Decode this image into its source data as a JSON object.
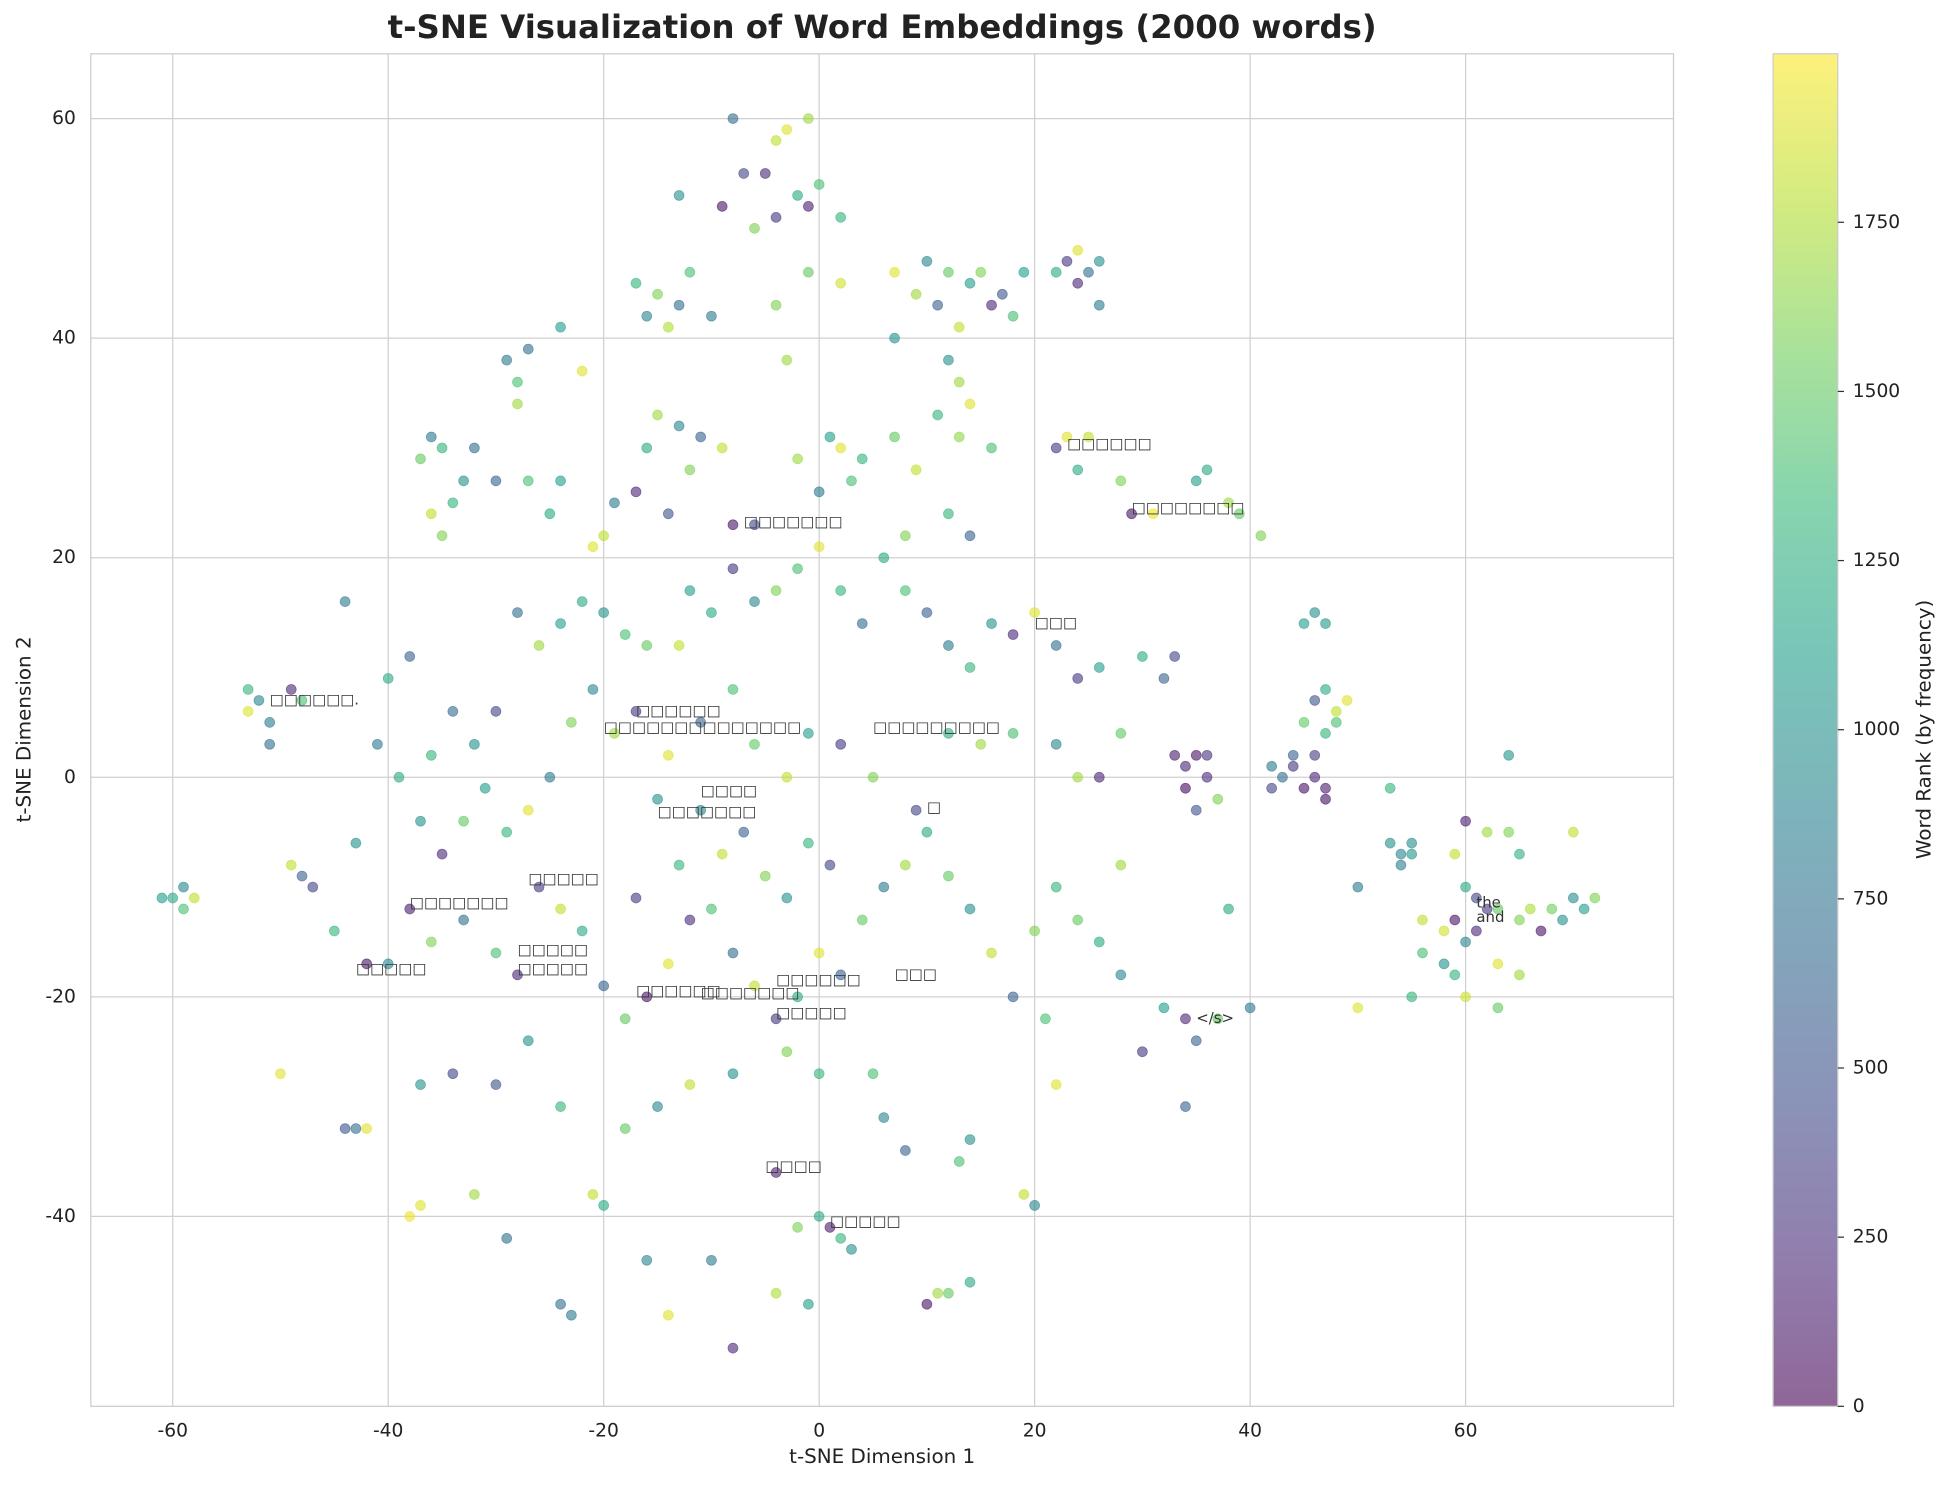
{
  "chart_data": {
    "type": "scatter",
    "title": "t-SNE Visualization of Word Embeddings (2000 words)",
    "x_label": "t-SNE Dimension 1",
    "y_label": "t-SNE Dimension 2",
    "colorbar_label": "Word Rank (by frequency)",
    "colormap": "viridis",
    "alpha": 0.6,
    "grid": true,
    "xlim": [
      -67.6,
      79.3
    ],
    "ylim": [
      -57.3,
      65.9
    ],
    "xticks": [
      -60,
      -40,
      -20,
      0,
      20,
      40,
      60
    ],
    "yticks": [
      -40,
      -20,
      0,
      20,
      40,
      60
    ],
    "clim": [
      0,
      1999
    ],
    "cticks": [
      0,
      250,
      500,
      750,
      1000,
      1250,
      1500,
      1750
    ],
    "x": [
      -8,
      -3,
      -4,
      -7,
      -5,
      -2,
      -1,
      0,
      -9,
      -6,
      -13,
      -4,
      2,
      -1,
      7,
      10,
      12,
      14,
      9,
      11,
      16,
      18,
      13,
      7,
      19,
      15,
      17,
      23,
      24,
      25,
      26,
      24,
      26,
      22,
      -17,
      -15,
      -13,
      -16,
      -12,
      -14,
      -10,
      -4,
      -3,
      -1,
      2,
      -29,
      -27,
      -24,
      -28,
      -22,
      -28,
      -36,
      -35,
      -37,
      -32,
      -33,
      -30,
      -34,
      -27,
      -24,
      -36,
      -35,
      -25,
      -15,
      -13,
      -16,
      -11,
      -9,
      -12,
      -17,
      -19,
      -14,
      -20,
      -21,
      -8,
      -6,
      2,
      1,
      4,
      -2,
      3,
      0,
      7,
      9,
      8,
      12,
      13,
      11,
      14,
      16,
      13,
      12,
      14,
      23,
      25,
      22,
      24,
      28,
      29,
      31,
      35,
      36,
      38,
      39,
      41,
      33,
      34,
      35,
      36,
      36,
      34,
      37,
      35,
      42,
      43,
      44,
      45,
      46,
      47,
      47,
      46,
      44,
      42,
      46,
      45,
      47,
      46,
      48,
      48,
      47,
      45,
      49,
      47,
      53,
      54,
      55,
      54,
      53,
      55,
      60,
      62,
      64,
      59,
      60,
      61,
      62,
      59,
      61,
      58,
      60,
      63,
      65,
      66,
      68,
      69,
      70,
      71,
      72,
      58,
      59,
      63,
      65,
      63,
      56,
      55,
      56,
      64,
      65,
      70,
      67,
      60,
      50,
      50,
      -60,
      -59,
      -58,
      -59,
      -61,
      -53,
      -52,
      -51,
      -51,
      -53,
      -49,
      -48,
      -50,
      -49,
      -48,
      -47,
      -8,
      -14,
      -23,
      -24,
      11,
      12,
      14,
      10,
      -4,
      -1,
      2,
      3,
      1,
      -2,
      0,
      -10,
      -16,
      -4,
      -21,
      -20,
      -37,
      -38,
      -42,
      -44,
      -43,
      19,
      20,
      14,
      13,
      8,
      6,
      -44,
      -40,
      -38,
      -36,
      -34,
      -32,
      -30,
      -28,
      -26,
      -24,
      -22,
      -20,
      -18,
      -16,
      -13,
      -12,
      -10,
      -8,
      -6,
      -4,
      -2,
      0,
      2,
      4,
      6,
      8,
      10,
      12,
      14,
      16,
      18,
      20,
      22,
      24,
      26,
      28,
      30,
      32,
      33,
      22,
      24,
      26,
      18,
      15,
      12,
      9,
      5,
      2,
      -1,
      -3,
      -6,
      -8,
      -11,
      -14,
      -17,
      -19,
      -21,
      -23,
      -25,
      -27,
      -29,
      -31,
      -33,
      -35,
      -37,
      -39,
      -41,
      -43,
      -45,
      -42,
      -40,
      -38,
      -36,
      -33,
      -30,
      -28,
      -26,
      -24,
      -22,
      -20,
      -18,
      -16,
      -14,
      -12,
      -10,
      -8,
      -6,
      -4,
      -2,
      0,
      2,
      4,
      6,
      8,
      10,
      12,
      14,
      16,
      18,
      20,
      22,
      24,
      26,
      28,
      30,
      32,
      34,
      35,
      37,
      38,
      40,
      34,
      28,
      21,
      22,
      -15,
      -12,
      -18,
      -24,
      -27,
      -30,
      -34,
      -37,
      -32,
      -29,
      -8,
      -3,
      0,
      5,
      -17,
      -15,
      -13,
      -11,
      -9,
      -7,
      -5,
      -3,
      -1,
      1
    ],
    "y": [
      60,
      59,
      58,
      55,
      55,
      53,
      52,
      54,
      52,
      50,
      53,
      51,
      51,
      60,
      46,
      47,
      46,
      45,
      44,
      43,
      43,
      42,
      41,
      40,
      46,
      46,
      44,
      47,
      48,
      46,
      47,
      45,
      43,
      46,
      45,
      44,
      43,
      42,
      46,
      41,
      42,
      43,
      38,
      46,
      45,
      38,
      39,
      41,
      36,
      37,
      34,
      31,
      30,
      29,
      30,
      27,
      27,
      25,
      27,
      27,
      24,
      22,
      24,
      33,
      32,
      30,
      31,
      30,
      28,
      26,
      25,
      24,
      22,
      21,
      23,
      23,
      30,
      31,
      29,
      29,
      27,
      26,
      31,
      28,
      22,
      38,
      36,
      33,
      34,
      30,
      31,
      24,
      22,
      31,
      31,
      30,
      28,
      27,
      24,
      24,
      27,
      28,
      25,
      24,
      22,
      2,
      1,
      2,
      0,
      2,
      -1,
      -2,
      -3,
      1,
      0,
      1,
      -1,
      0,
      -1,
      -2,
      2,
      2,
      -1,
      15,
      14,
      8,
      7,
      6,
      5,
      4,
      5,
      7,
      14,
      -6,
      -7,
      -6,
      -8,
      -1,
      -7,
      -4,
      -5,
      -5,
      -7,
      -10,
      -11,
      -12,
      -13,
      -14,
      -14,
      -15,
      -12,
      -13,
      -12,
      -12,
      -13,
      -11,
      -12,
      -11,
      -17,
      -18,
      -17,
      -18,
      -21,
      -16,
      -20,
      -13,
      2,
      -7,
      -5,
      -14,
      -20,
      -21,
      -10,
      -11,
      -10,
      -11,
      -12,
      -11,
      8,
      7,
      3,
      5,
      6,
      8,
      7,
      -27,
      -8,
      -9,
      -10,
      -52,
      -49,
      -49,
      -48,
      -47,
      -47,
      -46,
      -48,
      -47,
      -48,
      -42,
      -43,
      -41,
      -41,
      -40,
      -44,
      -44,
      -36,
      -38,
      -39,
      -39,
      -40,
      -32,
      -32,
      -32,
      -38,
      -39,
      -33,
      -35,
      -34,
      -31,
      16,
      9,
      11,
      2,
      6,
      3,
      6,
      15,
      12,
      14,
      16,
      15,
      13,
      12,
      12,
      17,
      15,
      19,
      16,
      17,
      19,
      21,
      17,
      14,
      20,
      17,
      15,
      12,
      10,
      14,
      13,
      15,
      12,
      9,
      10,
      4,
      11,
      9,
      11,
      3,
      0,
      0,
      4,
      3,
      4,
      -3,
      0,
      3,
      4,
      0,
      3,
      8,
      5,
      2,
      6,
      4,
      8,
      5,
      0,
      -3,
      -5,
      -1,
      -4,
      -7,
      -4,
      0,
      3,
      -6,
      -14,
      -17,
      -17,
      -12,
      -15,
      -13,
      -16,
      -18,
      -10,
      -12,
      -14,
      -19,
      -22,
      -20,
      -17,
      -13,
      -12,
      -16,
      -19,
      -22,
      -20,
      -16,
      -18,
      -13,
      -10,
      -8,
      -5,
      -9,
      -12,
      -16,
      -20,
      -14,
      -10,
      -13,
      -15,
      -18,
      -25,
      -21,
      -22,
      -24,
      -22,
      -12,
      -21,
      -30,
      -8,
      -22,
      -28,
      -30,
      -28,
      -32,
      -30,
      -24,
      -28,
      -27,
      -28,
      -38,
      -42,
      -27,
      -25,
      -27,
      -27,
      -11,
      -2,
      -8,
      -3,
      -7,
      -5,
      -9,
      -11,
      -6,
      -8
    ],
    "ranks": [
      700,
      1900,
      1800,
      400,
      200,
      1200,
      150,
      1400,
      100,
      1600,
      1000,
      300,
      1300,
      1700,
      1900,
      900,
      1500,
      1100,
      1700,
      600,
      200,
      1400,
      1800,
      1000,
      1100,
      1600,
      500,
      300,
      1900,
      700,
      1000,
      200,
      800,
      1200,
      1300,
      1600,
      700,
      900,
      1400,
      1750,
      800,
      1600,
      1700,
      1500,
      1850,
      800,
      700,
      1100,
      1400,
      1900,
      1700,
      800,
      1300,
      1500,
      700,
      1000,
      600,
      1300,
      1400,
      1100,
      1800,
      1600,
      1200,
      1700,
      900,
      1200,
      600,
      1800,
      1600,
      200,
      800,
      500,
      1800,
      1900,
      100,
      400,
      1900,
      1100,
      1300,
      1700,
      1400,
      800,
      1500,
      1800,
      1600,
      1000,
      1700,
      1300,
      1900,
      1400,
      1650,
      1300,
      600,
      1900,
      1800,
      300,
      1200,
      1600,
      100,
      1950,
      1100,
      1200,
      1700,
      1500,
      1600,
      150,
      200,
      100,
      250,
      300,
      50,
      1600,
      500,
      800,
      700,
      300,
      100,
      200,
      150,
      80,
      350,
      600,
      400,
      1000,
      1100,
      1200,
      500,
      1800,
      1400,
      1300,
      1500,
      1900,
      1050,
      1000,
      900,
      950,
      850,
      1300,
      1050,
      150,
      1700,
      1600,
      1800,
      1200,
      400,
      300,
      100,
      200,
      1850,
      900,
      1500,
      1600,
      1750,
      1550,
      1000,
      950,
      1100,
      1600,
      1000,
      1300,
      1900,
      1700,
      1500,
      1400,
      1300,
      1800,
      1050,
      1250,
      1800,
      100,
      1850,
      1900,
      800,
      1200,
      900,
      1800,
      1400,
      1100,
      1300,
      900,
      700,
      800,
      1900,
      200,
      1400,
      1900,
      1800,
      600,
      400,
      200,
      1900,
      800,
      700,
      1700,
      1500,
      1200,
      100,
      1750,
      1100,
      1300,
      1000,
      150,
      1600,
      1200,
      800,
      900,
      150,
      1800,
      1200,
      1900,
      1950,
      1900,
      500,
      700,
      1800,
      900,
      1000,
      1400,
      600,
      900,
      800,
      1200,
      600,
      1300,
      700,
      1000,
      400,
      700,
      1700,
      1100,
      1200,
      1000,
      1400,
      1500,
      1800,
      1100,
      1200,
      300,
      900,
      1600,
      1400,
      1900,
      1300,
      700,
      1200,
      1400,
      600,
      800,
      1300,
      1000,
      200,
      1900,
      700,
      300,
      1100,
      1500,
      1200,
      600,
      400,
      900,
      1700,
      200,
      1400,
      1700,
      1200,
      400,
      1600,
      300,
      1100,
      1800,
      1500,
      1400,
      600,
      1900,
      300,
      1700,
      900,
      1600,
      800,
      1900,
      1300,
      1100,
      1500,
      200,
      1000,
      1200,
      800,
      1000,
      1300,
      100,
      900,
      150,
      1600,
      700,
      1400,
      200,
      300,
      1800,
      1200,
      600,
      1500,
      100,
      1900,
      250,
      1400,
      700,
      1800,
      300,
      1200,
      1900,
      600,
      1500,
      800,
      1700,
      1200,
      1500,
      1000,
      1800,
      600,
      1600,
      1300,
      1500,
      1200,
      900,
      300,
      1100,
      200,
      600,
      1500,
      1200,
      800,
      600,
      1700,
      1400,
      1900,
      900,
      1800,
      1500,
      1300,
      1000,
      500,
      400,
      1000,
      1700,
      700,
      1000,
      1600,
      1300,
      1400,
      300,
      1000,
      1300,
      900,
      1800,
      600,
      1600,
      1000,
      1300,
      400
    ],
    "annotations": [
      {
        "text": "□□□□□□",
        "x": 23,
        "y": 30.3
      },
      {
        "text": "□□□□□□□□",
        "x": 29,
        "y": 24.5
      },
      {
        "text": "□□□□□□□",
        "x": -7,
        "y": 23.2
      },
      {
        "text": "□□□",
        "x": 20,
        "y": 14
      },
      {
        "text": "□□□□□□.",
        "x": -51,
        "y": 7
      },
      {
        "text": "□□□□□□",
        "x": -17,
        "y": 6
      },
      {
        "text": "□□□□□□□□□□□□□□",
        "x": -20,
        "y": 4.5
      },
      {
        "text": "□□□□□□□□□",
        "x": 5,
        "y": 4.5
      },
      {
        "text": "□□□□",
        "x": -11,
        "y": -1.3
      },
      {
        "text": "□□□□□□□",
        "x": -15,
        "y": -3.2
      },
      {
        "text": "□",
        "x": 10,
        "y": -2.8
      },
      {
        "text": "□□□□□",
        "x": -27,
        "y": -9.3
      },
      {
        "text": "□□□□□□□",
        "x": -38,
        "y": -11.5
      },
      {
        "text": "□□□□□",
        "x": -28,
        "y": -15.8
      },
      {
        "text": "□□□□□",
        "x": -28,
        "y": -17.5
      },
      {
        "text": "□□□□□",
        "x": -43,
        "y": -17.5
      },
      {
        "text": "□□□□□□",
        "x": -4,
        "y": -18.5
      },
      {
        "text": "□□□",
        "x": 7,
        "y": -18
      },
      {
        "text": "□□□□□□",
        "x": -17,
        "y": -19.5
      },
      {
        "text": "□□□□□□□",
        "x": -11,
        "y": -19.7
      },
      {
        "text": "□□□□□",
        "x": -4,
        "y": -21.5
      },
      {
        "text": "□□□□",
        "x": -5,
        "y": -35.5
      },
      {
        "text": "□□□□□",
        "x": 1,
        "y": -40.5
      },
      {
        "text": "the",
        "x": 61,
        "y": -11.5
      },
      {
        "text": "and",
        "x": 61,
        "y": -12.8
      },
      {
        "text": "</s>",
        "x": 35,
        "y": -22
      }
    ]
  }
}
